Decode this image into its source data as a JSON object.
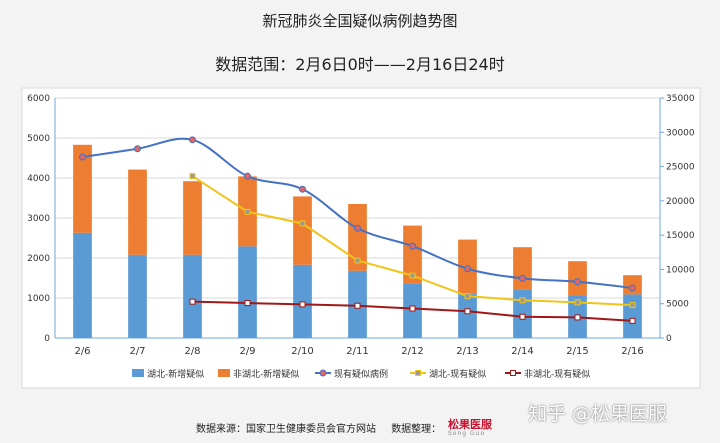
{
  "chart_data": {
    "type": "bar",
    "title": "新冠肺炎全国疑似病例趋势图",
    "subtitle": "数据范围：2月6日0时——2月16日24时",
    "categories": [
      "2/6",
      "2/7",
      "2/8",
      "2/9",
      "2/10",
      "2/11",
      "2/12",
      "2/13",
      "2/14",
      "2/15",
      "2/16"
    ],
    "y_left": {
      "min": 0,
      "max": 6000,
      "ticks": [
        0,
        1000,
        2000,
        3000,
        4000,
        5000,
        6000
      ]
    },
    "y_right": {
      "min": 0,
      "max": 35000,
      "ticks": [
        0,
        5000,
        10000,
        15000,
        20000,
        25000,
        30000,
        35000
      ]
    },
    "grid": true,
    "legend_position": "bottom",
    "bar_series": [
      {
        "name": "湖北-新增疑似",
        "color": "#5b9bd5",
        "axis": "left",
        "values": [
          2630,
          2080,
          2080,
          2290,
          1830,
          1680,
          1370,
          1110,
          1210,
          1050,
          1090
        ]
      },
      {
        "name": "非湖北-新增疑似",
        "color": "#ed7d31",
        "axis": "left",
        "values": [
          2200,
          2130,
          1840,
          1750,
          1710,
          1670,
          1440,
          1350,
          1060,
          870,
          480
        ]
      }
    ],
    "line_series": [
      {
        "name": "现有疑似病例",
        "color": "#4472c4",
        "marker_fill": "#e06666",
        "marker": "circle",
        "axis": "right",
        "smooth": true,
        "values": [
          26400,
          27600,
          28900,
          23600,
          21700,
          16000,
          13400,
          10100,
          8700,
          8200,
          7300
        ]
      },
      {
        "name": "湖北-现有疑似",
        "color": "#f0c419",
        "marker_fill": "#999999",
        "marker": "square",
        "axis": "right",
        "smooth": false,
        "values": [
          null,
          null,
          23600,
          18400,
          16700,
          11300,
          9100,
          6100,
          5500,
          5200,
          4800
        ]
      },
      {
        "name": "非湖北-现有疑似",
        "color": "#a01818",
        "marker_fill": "#ffffff",
        "marker": "square",
        "axis": "right",
        "smooth": false,
        "values": [
          null,
          null,
          5300,
          5100,
          4900,
          4700,
          4300,
          3900,
          3100,
          3000,
          2500
        ]
      }
    ]
  },
  "footer": {
    "source": "数据来源：国家卫生健康委员会官方网站",
    "compiler": "数据整理：",
    "logo_text": "松果医服",
    "logo_sub": "Song Guo"
  },
  "watermark": "知乎 @松果医服"
}
